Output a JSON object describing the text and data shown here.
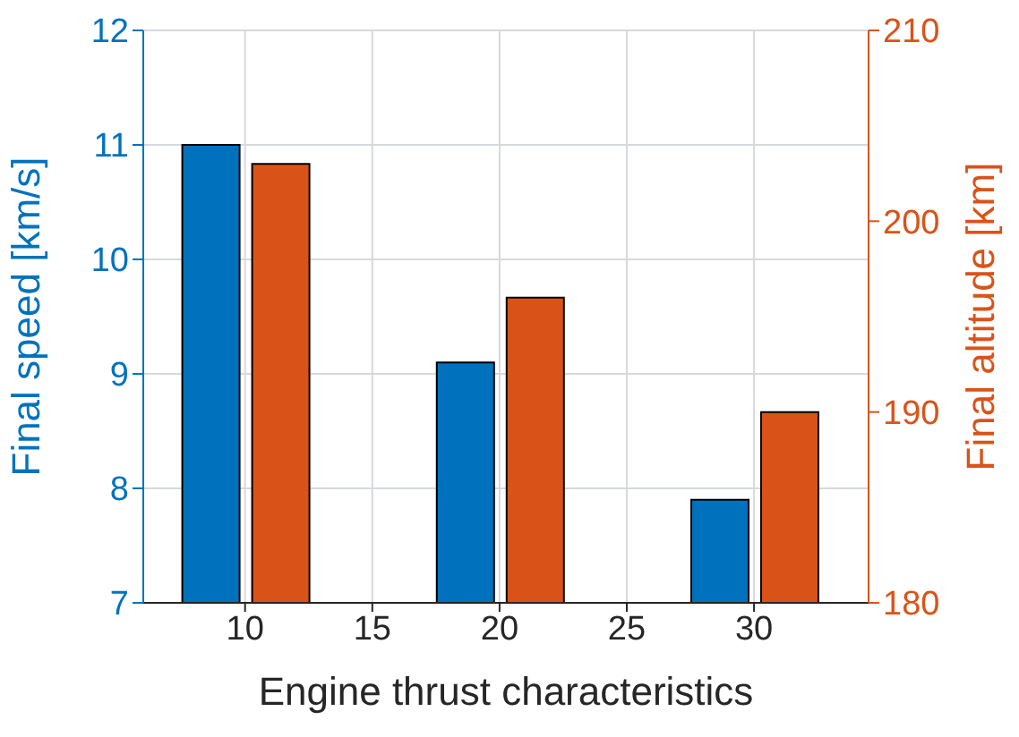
{
  "chart_data": {
    "type": "bar",
    "x": [
      10,
      20,
      30
    ],
    "xlabel": "Engine thrust characteristics",
    "ylabel": "Final speed [km/s]",
    "y2label": "Final altitude [km]",
    "series": [
      {
        "color": "#0072bd",
        "values": [
          11,
          9.1,
          7.9
        ]
      },
      {
        "color": "#d95319",
        "values": [
          203,
          196,
          190
        ],
        "axis": "y2"
      }
    ],
    "xlim": [
      6,
      34.5
    ],
    "xticks": [
      10,
      15,
      20,
      25,
      30
    ],
    "ylim": [
      7,
      12
    ],
    "yticks": [
      7,
      8,
      9,
      10,
      11,
      12
    ],
    "y2lim": [
      180,
      210
    ],
    "y2ticks": [
      180,
      190,
      200,
      210
    ],
    "grid": true
  }
}
